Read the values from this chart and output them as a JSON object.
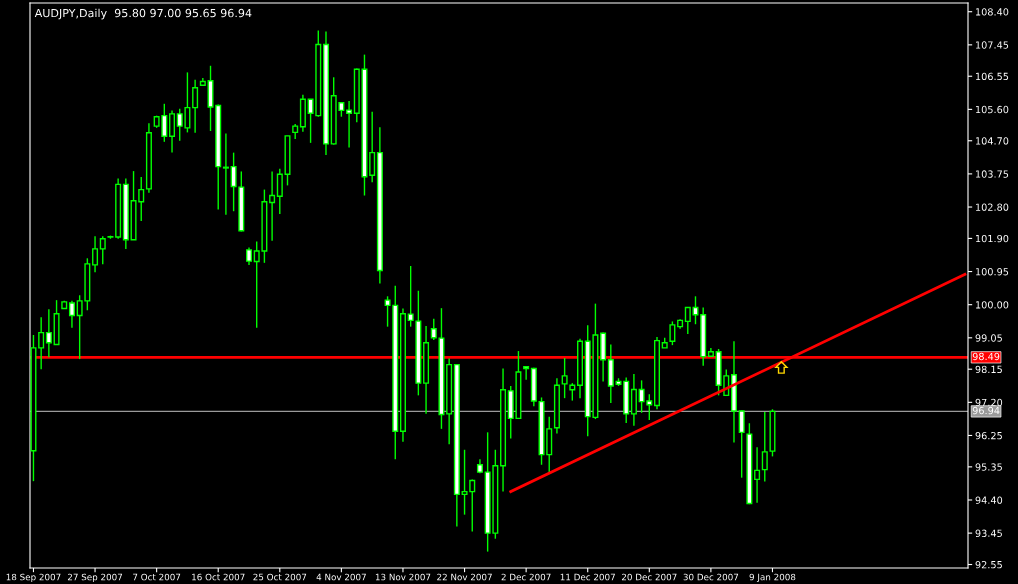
{
  "chart_data": {
    "type": "candlestick",
    "title": "AUDJPY,Daily  95.80 97.00 95.65 96.94",
    "categories": [
      "18 Sep 2007",
      null,
      null,
      null,
      null,
      null,
      null,
      null,
      "27 Sep 2007",
      null,
      null,
      null,
      null,
      null,
      null,
      null,
      "7 Oct 2007",
      null,
      null,
      null,
      null,
      null,
      null,
      null,
      "16 Oct 2007",
      null,
      null,
      null,
      null,
      null,
      null,
      null,
      "25 Oct 2007",
      null,
      null,
      null,
      null,
      null,
      null,
      null,
      "4 Nov 2007",
      null,
      null,
      null,
      null,
      null,
      null,
      null,
      "13 Nov 2007",
      null,
      null,
      null,
      null,
      null,
      null,
      null,
      "22 Nov 2007",
      null,
      null,
      null,
      null,
      null,
      null,
      null,
      "2 Dec 2007",
      null,
      null,
      null,
      null,
      null,
      null,
      null,
      "11 Dec 2007",
      null,
      null,
      null,
      null,
      null,
      null,
      null,
      "20 Dec 2007",
      null,
      null,
      null,
      null,
      null,
      null,
      null,
      "30 Dec 2007",
      null,
      null,
      null,
      null,
      null,
      null,
      null,
      "9 Jan 2008",
      null,
      null,
      null,
      null,
      null,
      null,
      null,
      null,
      null,
      null,
      null,
      null,
      null,
      null,
      null,
      null,
      null,
      null,
      null,
      null,
      null,
      null,
      null,
      null,
      null
    ],
    "ohlc": [
      [
        95.81,
        99.13,
        94.94,
        98.76
      ],
      [
        98.76,
        99.64,
        98.15,
        99.2
      ],
      [
        99.2,
        99.87,
        98.49,
        98.91
      ],
      [
        98.86,
        100.13,
        98.86,
        99.74
      ],
      [
        99.89,
        100.11,
        99.89,
        100.08
      ],
      [
        100.05,
        100.11,
        99.34,
        99.69
      ],
      [
        99.69,
        100.27,
        98.44,
        100.11
      ],
      [
        100.11,
        101.33,
        99.84,
        101.17
      ],
      [
        101.14,
        101.96,
        100.93,
        101.6
      ],
      [
        101.6,
        101.96,
        101.16,
        101.89
      ],
      [
        101.94,
        101.98,
        101.89,
        101.94
      ],
      [
        101.94,
        103.62,
        101.89,
        103.45
      ],
      [
        103.45,
        103.62,
        101.6,
        101.86
      ],
      [
        101.86,
        103.83,
        101.86,
        102.98
      ],
      [
        102.95,
        103.66,
        102.4,
        103.3
      ],
      [
        103.32,
        105.2,
        103.21,
        104.93
      ],
      [
        105.12,
        105.42,
        105.07,
        105.39
      ],
      [
        105.42,
        105.76,
        104.67,
        104.83
      ],
      [
        104.83,
        105.57,
        104.36,
        105.47
      ],
      [
        105.47,
        105.62,
        104.7,
        105.12
      ],
      [
        105.07,
        106.66,
        104.94,
        105.65
      ],
      [
        105.65,
        106.45,
        104.93,
        106.22
      ],
      [
        106.29,
        106.5,
        106.29,
        106.4
      ],
      [
        106.42,
        106.85,
        104.98,
        105.67
      ],
      [
        105.71,
        105.74,
        102.73,
        103.96
      ],
      [
        103.94,
        104.91,
        102.58,
        103.92
      ],
      [
        103.96,
        104.36,
        102.68,
        103.39
      ],
      [
        103.37,
        103.82,
        102.1,
        102.12
      ],
      [
        101.57,
        101.64,
        101.14,
        101.25
      ],
      [
        101.24,
        101.81,
        99.34,
        101.54
      ],
      [
        101.54,
        103.3,
        101.2,
        102.95
      ],
      [
        102.93,
        103.82,
        101.83,
        103.13
      ],
      [
        103.11,
        103.9,
        102.6,
        103.74
      ],
      [
        103.74,
        104.84,
        103.42,
        104.84
      ],
      [
        104.94,
        105.18,
        104.75,
        105.12
      ],
      [
        105.1,
        106.02,
        104.96,
        105.89
      ],
      [
        105.89,
        105.89,
        104.64,
        105.49
      ],
      [
        105.42,
        107.86,
        105.39,
        107.46
      ],
      [
        107.46,
        107.83,
        104.29,
        104.61
      ],
      [
        104.61,
        106.52,
        104.59,
        105.99
      ],
      [
        105.79,
        105.81,
        105.39,
        105.57
      ],
      [
        105.58,
        105.84,
        104.51,
        105.49
      ],
      [
        105.49,
        106.77,
        105.23,
        106.75
      ],
      [
        106.75,
        107.17,
        103.13,
        103.67
      ],
      [
        103.71,
        105.53,
        103.51,
        104.36
      ],
      [
        104.36,
        105.09,
        100.61,
        100.98
      ],
      [
        100.13,
        100.24,
        99.37,
        99.98
      ],
      [
        99.98,
        100.54,
        95.57,
        96.37
      ],
      [
        96.37,
        99.89,
        96.07,
        99.74
      ],
      [
        99.73,
        101.11,
        99.37,
        99.55
      ],
      [
        99.53,
        100.4,
        97.4,
        97.75
      ],
      [
        97.75,
        99.39,
        96.87,
        98.91
      ],
      [
        99.31,
        99.6,
        98.99,
        99.05
      ],
      [
        99.04,
        99.9,
        96.44,
        96.85
      ],
      [
        96.87,
        98.46,
        96.0,
        98.28
      ],
      [
        98.28,
        98.3,
        93.64,
        94.56
      ],
      [
        94.56,
        95.84,
        93.98,
        94.64
      ],
      [
        94.64,
        94.99,
        93.5,
        94.96
      ],
      [
        95.41,
        95.57,
        95.17,
        95.2
      ],
      [
        95.2,
        96.34,
        92.92,
        93.45
      ],
      [
        93.45,
        95.84,
        93.29,
        95.38
      ],
      [
        95.38,
        98.17,
        94.64,
        97.56
      ],
      [
        97.53,
        97.67,
        96.16,
        96.74
      ],
      [
        96.74,
        98.67,
        96.74,
        98.07
      ],
      [
        98.22,
        98.22,
        97.85,
        98.17
      ],
      [
        98.17,
        98.19,
        97.09,
        97.24
      ],
      [
        97.22,
        97.34,
        95.41,
        95.7
      ],
      [
        95.7,
        96.79,
        95.17,
        96.44
      ],
      [
        96.47,
        97.89,
        96.31,
        97.69
      ],
      [
        97.73,
        98.47,
        97.32,
        97.96
      ],
      [
        97.56,
        97.75,
        97.25,
        97.69
      ],
      [
        97.69,
        99.02,
        97.32,
        98.95
      ],
      [
        98.95,
        99.41,
        96.23,
        96.79
      ],
      [
        96.77,
        100.03,
        96.72,
        99.13
      ],
      [
        99.18,
        99.2,
        97.8,
        98.42
      ],
      [
        98.42,
        98.86,
        97.18,
        97.67
      ],
      [
        97.8,
        97.89,
        97.67,
        97.72
      ],
      [
        97.8,
        97.91,
        96.61,
        96.87
      ],
      [
        96.87,
        98.01,
        96.53,
        97.57
      ],
      [
        97.57,
        97.83,
        96.9,
        97.22
      ],
      [
        97.24,
        97.43,
        96.69,
        97.13
      ],
      [
        97.11,
        99.07,
        97.0,
        98.97
      ],
      [
        98.76,
        99.05,
        98.76,
        98.91
      ],
      [
        98.95,
        99.52,
        98.84,
        99.42
      ],
      [
        99.37,
        99.58,
        99.31,
        99.55
      ],
      [
        99.52,
        99.92,
        99.16,
        99.92
      ],
      [
        99.92,
        100.24,
        99.44,
        99.71
      ],
      [
        99.71,
        99.92,
        98.25,
        98.51
      ],
      [
        98.52,
        98.76,
        98.52,
        98.65
      ],
      [
        98.65,
        98.73,
        97.4,
        97.69
      ],
      [
        97.4,
        98.14,
        97.4,
        97.96
      ],
      [
        97.99,
        98.95,
        96.05,
        96.95
      ],
      [
        96.95,
        96.97,
        95.04,
        96.34
      ],
      [
        96.29,
        96.6,
        94.28,
        94.3
      ],
      [
        94.99,
        95.91,
        94.32,
        95.25
      ],
      [
        95.27,
        96.92,
        94.93,
        95.78
      ],
      [
        95.8,
        97.0,
        95.65,
        96.94
      ],
      null,
      null,
      null,
      null,
      null,
      null,
      null,
      null,
      null,
      null,
      null,
      null,
      null,
      null,
      null,
      null,
      null,
      null,
      null,
      null,
      null,
      null,
      null,
      null,
      null
    ],
    "series": [
      {
        "type": "line",
        "color": "#ff0000",
        "values": [
          null,
          null,
          null,
          null,
          null,
          null,
          null,
          null,
          null,
          null,
          null,
          null,
          null,
          null,
          null,
          null,
          null,
          null,
          null,
          null,
          null,
          null,
          null,
          null,
          null,
          null,
          null,
          null,
          null,
          null,
          null,
          null,
          null,
          null,
          null,
          null,
          null,
          null,
          null,
          null,
          null,
          null,
          null,
          null,
          null,
          null,
          null,
          null,
          null,
          null,
          null,
          null,
          null,
          null,
          null,
          null,
          null,
          null,
          null,
          null,
          null,
          null,
          94.64,
          null,
          null,
          null,
          null,
          null,
          null,
          null,
          null,
          null,
          null,
          null,
          null,
          null,
          null,
          null,
          null,
          null,
          null,
          null,
          null,
          null,
          null,
          null,
          null,
          null,
          null,
          null,
          null,
          null,
          null,
          null,
          null,
          null,
          null,
          null,
          null,
          null,
          null,
          null,
          null,
          null,
          null,
          null,
          null,
          null,
          null,
          null,
          null,
          null,
          null,
          null,
          null,
          null,
          null,
          null,
          null,
          null,
          null,
          100.87
        ]
      }
    ],
    "ref_lines": [
      {
        "axis": "y",
        "value": 98.49,
        "label": "98.49",
        "color": "#ff0000"
      },
      {
        "axis": "y",
        "value": 96.94,
        "label": "96.94",
        "color": "#9a9a9a"
      }
    ],
    "ylim": [
      92.45,
      108.65
    ],
    "yticks": [
      {
        "value": 108.4,
        "label": "108.40"
      },
      {
        "value": 107.45,
        "label": "107.45"
      },
      {
        "value": 106.55,
        "label": "106.55"
      },
      {
        "value": 105.6,
        "label": "105.60"
      },
      {
        "value": 104.7,
        "label": "104.70"
      },
      {
        "value": 103.75,
        "label": "103.75"
      },
      {
        "value": 102.8,
        "label": "102.80"
      },
      {
        "value": 101.9,
        "label": "101.90"
      },
      {
        "value": 100.95,
        "label": "100.95"
      },
      {
        "value": 100.0,
        "label": "100.00"
      },
      {
        "value": 99.05,
        "label": "99.05"
      },
      {
        "value": 98.15,
        "label": "98.15"
      },
      {
        "value": 97.2,
        "label": "97.20"
      },
      {
        "value": 96.25,
        "label": "96.25"
      },
      {
        "value": 95.35,
        "label": "95.35"
      },
      {
        "value": 94.4,
        "label": "94.40"
      },
      {
        "value": 93.45,
        "label": "93.45"
      },
      {
        "value": 92.55,
        "label": "92.55"
      }
    ],
    "grid": false,
    "legend": false
  }
}
